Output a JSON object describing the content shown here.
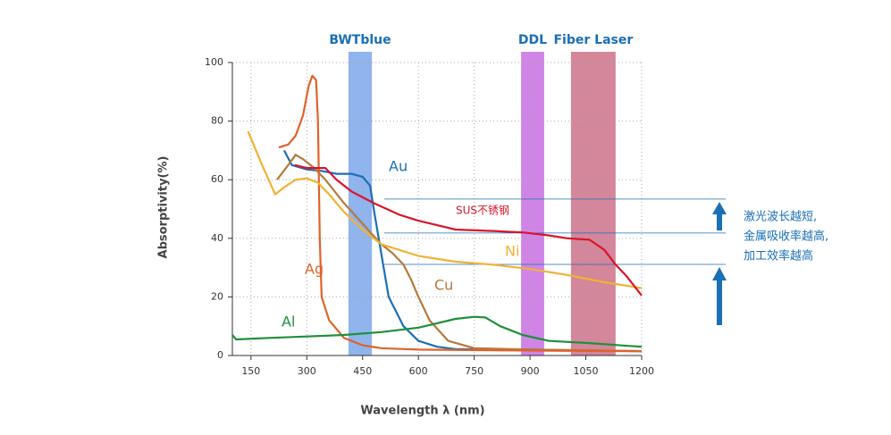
{
  "chart_data": {
    "type": "line",
    "xlabel": "Wavelength λ (nm)",
    "ylabel": "Absorptivity(%)",
    "xlim": [
      100,
      1200
    ],
    "xticks": [
      150,
      300,
      450,
      600,
      750,
      900,
      1050,
      1200
    ],
    "ylim": [
      0,
      100
    ],
    "yticks": [
      0,
      20,
      40,
      60,
      80,
      100
    ],
    "grid": true,
    "bands": [
      {
        "name": "BWTblue",
        "range": [
          412,
          475
        ],
        "color": "#8fb4ee"
      },
      {
        "name": "DDL",
        "range": [
          876,
          938
        ],
        "color": "#d085e6"
      },
      {
        "name": "Fiber Laser",
        "range": [
          1010,
          1130
        ],
        "color": "#d4869b"
      }
    ],
    "reference_lines": [
      53.4,
      41.8,
      31.1
    ],
    "annotation": [
      "激光波长越短,",
      "金属吸收率越高,",
      "加工效率越高"
    ],
    "series": [
      {
        "name": "Au",
        "color": "#1a6fb5",
        "x": [
          239,
          260,
          300,
          340,
          380,
          420,
          450,
          470,
          480,
          500,
          520,
          560,
          600,
          650,
          700,
          800,
          900,
          1000,
          1100,
          1200
        ],
        "values": [
          70,
          65,
          63.5,
          63,
          62,
          62,
          61,
          58,
          50,
          35,
          20,
          10,
          5,
          3,
          2.2,
          2,
          2,
          1.8,
          1.6,
          1.5
        ]
      },
      {
        "name": "Cu",
        "color": "#b5793b",
        "x": [
          220,
          250,
          270,
          290,
          320,
          350,
          400,
          450,
          500,
          530,
          560,
          580,
          600,
          630,
          680,
          750,
          900,
          1050,
          1200
        ],
        "values": [
          60,
          65,
          68.5,
          67,
          64,
          60,
          52,
          45,
          38,
          35,
          31,
          26,
          20,
          12,
          5,
          2.5,
          2,
          1.8,
          1.5
        ]
      },
      {
        "name": "Ag",
        "color": "#e0622a",
        "x": [
          225,
          250,
          270,
          290,
          305,
          315,
          325,
          330,
          335,
          340,
          360,
          400,
          450,
          500,
          600,
          800,
          1000,
          1200
        ],
        "values": [
          71,
          72,
          75,
          82,
          92,
          95.5,
          94,
          80,
          40,
          20,
          12,
          6,
          3.5,
          2.5,
          2,
          1.8,
          1.6,
          1.5
        ]
      },
      {
        "name": "Ni",
        "color": "#f2b134",
        "x": [
          142,
          180,
          215,
          240,
          270,
          300,
          330,
          360,
          400,
          450,
          500,
          600,
          700,
          800,
          900,
          1000,
          1100,
          1200
        ],
        "values": [
          76.5,
          65,
          55,
          57.5,
          60,
          60.5,
          59,
          55,
          49,
          43,
          38,
          34,
          32,
          31,
          29.5,
          27.5,
          25,
          23
        ]
      },
      {
        "name": "SUS不锈钢",
        "color": "#d9142a",
        "x": [
          268,
          300,
          350,
          380,
          420,
          480,
          550,
          600,
          700,
          800,
          880,
          950,
          1000,
          1060,
          1100,
          1130,
          1160,
          1200
        ],
        "values": [
          65,
          64,
          64,
          60,
          56,
          52,
          48,
          46,
          43,
          42.5,
          42,
          41,
          40,
          39.5,
          36,
          31,
          27,
          20.5
        ]
      },
      {
        "name": "Al",
        "color": "#1e8f3a",
        "x": [
          100,
          110,
          200,
          300,
          400,
          500,
          600,
          650,
          700,
          750,
          780,
          820,
          880,
          950,
          1050,
          1150,
          1200
        ],
        "values": [
          7,
          5.5,
          6,
          6.5,
          7,
          8,
          9.5,
          11,
          12.5,
          13.2,
          13,
          10,
          7,
          5,
          4.3,
          3.4,
          3
        ]
      }
    ]
  }
}
